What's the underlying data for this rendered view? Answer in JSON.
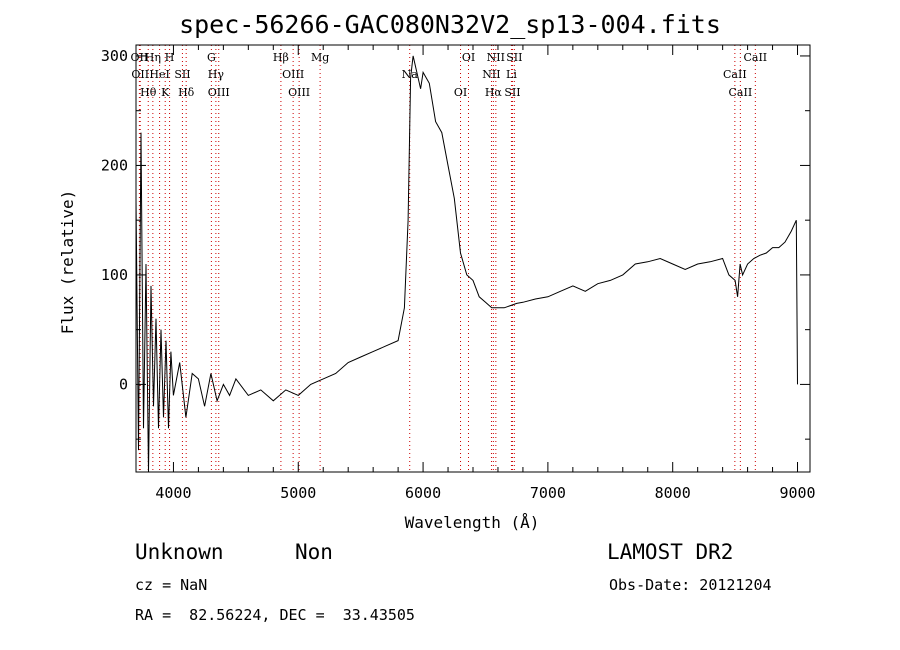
{
  "header": {
    "title": "spec-56266-GAC080N32V2_sp13-004.fits"
  },
  "info": {
    "class": "Unknown",
    "subclass": "Non",
    "survey": "LAMOST DR2",
    "cz": "cz = NaN",
    "obs_date": "Obs-Date: 20121204",
    "radec": "RA =  82.56224, DEC =  33.43505"
  },
  "chart_data": {
    "type": "line",
    "title": "spec-56266-GAC080N32V2_sp13-004.fits",
    "xlabel": "Wavelength (Å)",
    "ylabel": "Flux (relative)",
    "xlim": [
      3700,
      9100
    ],
    "ylim": [
      -80,
      310
    ],
    "xticks": [
      4000,
      5000,
      6000,
      7000,
      8000,
      9000
    ],
    "yticks": [
      0,
      100,
      200,
      300
    ],
    "grid": false,
    "line_color": "#000000",
    "marker_color": "#cc0000",
    "series": [
      {
        "values": {
          "x": [
            3700,
            3720,
            3740,
            3760,
            3780,
            3800,
            3820,
            3840,
            3860,
            3880,
            3900,
            3920,
            3940,
            3960,
            3980,
            4000,
            4050,
            4100,
            4150,
            4200,
            4250,
            4300,
            4350,
            4400,
            4450,
            4500,
            4600,
            4700,
            4800,
            4900,
            5000,
            5100,
            5200,
            5300,
            5400,
            5500,
            5600,
            5700,
            5800,
            5850,
            5880,
            5900,
            5920,
            5940,
            5960,
            5980,
            6000,
            6050,
            6100,
            6150,
            6200,
            6250,
            6300,
            6350,
            6400,
            6450,
            6500,
            6550,
            6600,
            6650,
            6700,
            6750,
            6800,
            6900,
            7000,
            7100,
            7200,
            7300,
            7400,
            7500,
            7600,
            7700,
            7800,
            7900,
            8000,
            8100,
            8200,
            8300,
            8400,
            8450,
            8500,
            8520,
            8540,
            8560,
            8600,
            8650,
            8700,
            8750,
            8800,
            8850,
            8900,
            8950,
            8990,
            9000
          ],
          "y": [
            170,
            -60,
            230,
            -40,
            110,
            -80,
            90,
            -20,
            60,
            -40,
            50,
            -30,
            40,
            -40,
            30,
            -10,
            20,
            -30,
            10,
            5,
            -20,
            10,
            -15,
            0,
            -10,
            5,
            -10,
            -5,
            -15,
            -5,
            -10,
            0,
            5,
            10,
            20,
            25,
            30,
            35,
            40,
            70,
            150,
            280,
            300,
            290,
            280,
            270,
            285,
            275,
            240,
            230,
            200,
            170,
            120,
            100,
            95,
            80,
            75,
            70,
            70,
            70,
            72,
            74,
            75,
            78,
            80,
            85,
            90,
            85,
            92,
            95,
            100,
            110,
            112,
            115,
            110,
            105,
            110,
            112,
            115,
            100,
            95,
            80,
            110,
            100,
            110,
            115,
            118,
            120,
            125,
            125,
            130,
            140,
            150,
            0
          ]
        }
      }
    ],
    "lines": [
      {
        "x": 3727,
        "label": "OII"
      },
      {
        "x": 3734,
        "label": "OII"
      },
      {
        "x": 3798,
        "label": "Hθ"
      },
      {
        "x": 3835,
        "label": "Hη"
      },
      {
        "x": 3889,
        "label": "HeI"
      },
      {
        "x": 3934,
        "label": "K"
      },
      {
        "x": 3969,
        "label": "H"
      },
      {
        "x": 4072,
        "label": "SII"
      },
      {
        "x": 4102,
        "label": "Hδ"
      },
      {
        "x": 4304,
        "label": "G"
      },
      {
        "x": 4340,
        "label": "Hγ"
      },
      {
        "x": 4363,
        "label": "OIII"
      },
      {
        "x": 4861,
        "label": "Hβ"
      },
      {
        "x": 4959,
        "label": "OIII"
      },
      {
        "x": 5007,
        "label": "OIII"
      },
      {
        "x": 5175,
        "label": "Mg"
      },
      {
        "x": 5893,
        "label": "Na"
      },
      {
        "x": 6300,
        "label": "OI"
      },
      {
        "x": 6364,
        "label": "OI"
      },
      {
        "x": 6548,
        "label": "NII"
      },
      {
        "x": 6563,
        "label": "Hα"
      },
      {
        "x": 6583,
        "label": "NII"
      },
      {
        "x": 6708,
        "label": "Li"
      },
      {
        "x": 6716,
        "label": "SII"
      },
      {
        "x": 6731,
        "label": "SII"
      },
      {
        "x": 8498,
        "label": "CaII"
      },
      {
        "x": 8542,
        "label": "CaII"
      },
      {
        "x": 8662,
        "label": "CaII"
      }
    ]
  }
}
